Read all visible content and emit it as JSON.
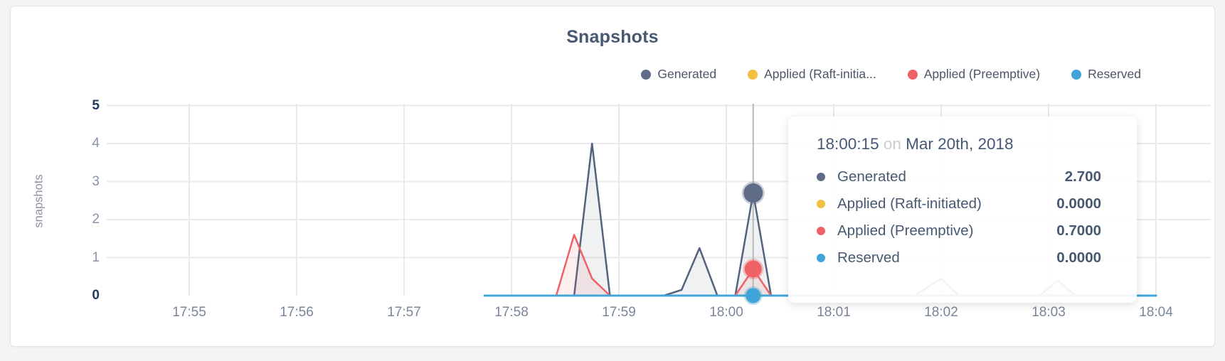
{
  "card": {
    "title": "Snapshots"
  },
  "legend": {
    "items": [
      {
        "label": "Generated",
        "color": "#5f6c87"
      },
      {
        "label": "Applied (Raft-initia...",
        "color": "#f2bf43"
      },
      {
        "label": "Applied (Preemptive)",
        "color": "#ef6267"
      },
      {
        "label": "Reserved",
        "color": "#41a4d9"
      }
    ]
  },
  "tooltip": {
    "time": "18:00:15",
    "on_word": "on",
    "date": "Mar 20th, 2018",
    "rows": [
      {
        "label": "Generated",
        "value": "2.700",
        "color": "#5f6c87"
      },
      {
        "label": "Applied (Raft-initiated)",
        "value": "0.0000",
        "color": "#f2bf43"
      },
      {
        "label": "Applied (Preemptive)",
        "value": "0.7000",
        "color": "#ef6267"
      },
      {
        "label": "Reserved",
        "value": "0.0000",
        "color": "#41a4d9"
      }
    ]
  },
  "chart_data": {
    "type": "area",
    "title": "Snapshots",
    "ylabel": "snapshots",
    "ylim": [
      0,
      5
    ],
    "y_ticks": [
      0,
      1,
      2,
      3,
      4,
      5
    ],
    "x_ticks": [
      "17:55",
      "17:56",
      "17:57",
      "17:58",
      "17:59",
      "18:00",
      "18:01",
      "18:02",
      "18:03",
      "18:04"
    ],
    "grid": true,
    "legend_position": "top-right",
    "hover": {
      "x": "18:00:15",
      "date": "Mar 20th, 2018",
      "values": {
        "Generated": 2.7,
        "Applied (Raft-initiated)": 0.0,
        "Applied (Preemptive)": 0.7,
        "Reserved": 0.0
      }
    },
    "series": [
      {
        "name": "Generated",
        "color": "#53627f",
        "fill": "rgba(83,98,127,0.09)",
        "points": [
          [
            "17:57:45",
            0
          ],
          [
            "17:58:35",
            0
          ],
          [
            "17:58:45",
            4
          ],
          [
            "17:58:55",
            0
          ],
          [
            "17:59:25",
            0
          ],
          [
            "17:59:35",
            0.15
          ],
          [
            "17:59:45",
            1.25
          ],
          [
            "17:59:55",
            0
          ],
          [
            "18:00:05",
            0
          ],
          [
            "18:00:15",
            2.7
          ],
          [
            "18:00:25",
            0
          ],
          [
            "18:01:45",
            0
          ],
          [
            "18:02:00",
            0.45
          ],
          [
            "18:02:10",
            0
          ],
          [
            "18:02:55",
            0
          ],
          [
            "18:03:05",
            0.4
          ],
          [
            "18:03:15",
            0
          ],
          [
            "18:04:00",
            0
          ]
        ]
      },
      {
        "name": "Applied (Raft-initiated)",
        "color": "#f2bf43",
        "fill": "none",
        "points": [
          [
            "17:57:45",
            0
          ],
          [
            "18:04:00",
            0
          ]
        ]
      },
      {
        "name": "Applied (Preemptive)",
        "color": "#ef6267",
        "fill": "rgba(239,98,103,0.10)",
        "points": [
          [
            "17:57:45",
            0
          ],
          [
            "17:58:25",
            0
          ],
          [
            "17:58:35",
            1.6
          ],
          [
            "17:58:45",
            0.45
          ],
          [
            "17:58:55",
            0
          ],
          [
            "18:00:05",
            0
          ],
          [
            "18:00:15",
            0.7
          ],
          [
            "18:00:25",
            0
          ],
          [
            "18:04:00",
            0
          ]
        ]
      },
      {
        "name": "Reserved",
        "color": "#41a4d9",
        "fill": "none",
        "points": [
          [
            "17:57:45",
            0
          ],
          [
            "18:04:00",
            0
          ]
        ]
      }
    ]
  }
}
